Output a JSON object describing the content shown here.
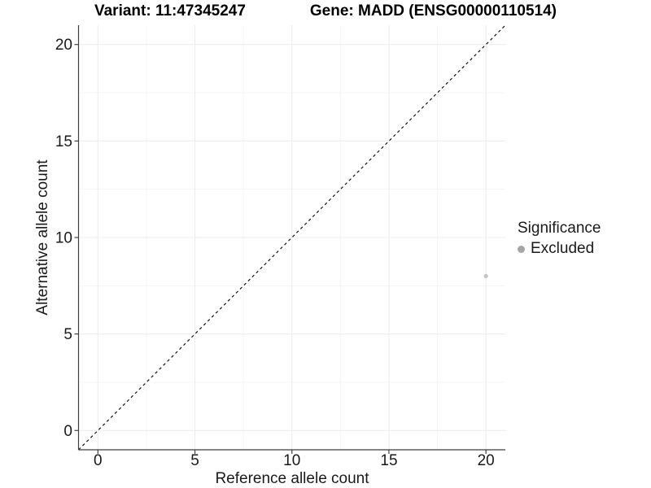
{
  "title": {
    "variant": "Variant: 11:47345247",
    "gene": "Gene: MADD (ENSG00000110514)"
  },
  "chart_data": {
    "type": "scatter",
    "xlabel": "Reference allele count",
    "ylabel": "Alternative allele count",
    "xlim": [
      -1,
      21
    ],
    "ylim": [
      -1,
      21
    ],
    "xticks": [
      0,
      5,
      10,
      15,
      20
    ],
    "yticks": [
      0,
      5,
      10,
      15,
      20
    ],
    "minor_xticks": [
      2.5,
      7.5,
      12.5,
      17.5
    ],
    "minor_yticks": [
      2.5,
      7.5,
      12.5,
      17.5
    ],
    "grid": true,
    "reference_line": {
      "type": "abline",
      "slope": 1,
      "intercept": 0,
      "style": "dashed"
    },
    "points": [
      {
        "x": 20,
        "y": 8,
        "series": "Excluded"
      }
    ],
    "legend": {
      "title": "Significance",
      "position": "right",
      "entries": [
        {
          "label": "Excluded",
          "color": "#a6a6a6"
        }
      ]
    }
  },
  "colors": {
    "background": "#ffffff",
    "grid_major": "#ececec",
    "grid_minor": "#f5f5f5",
    "axis_line": "#3f3f3f",
    "tick_text": "#1a1a1a",
    "reference_line": "#111111",
    "point": "#c4c4c4",
    "legend_key": "#a6a6a6"
  }
}
